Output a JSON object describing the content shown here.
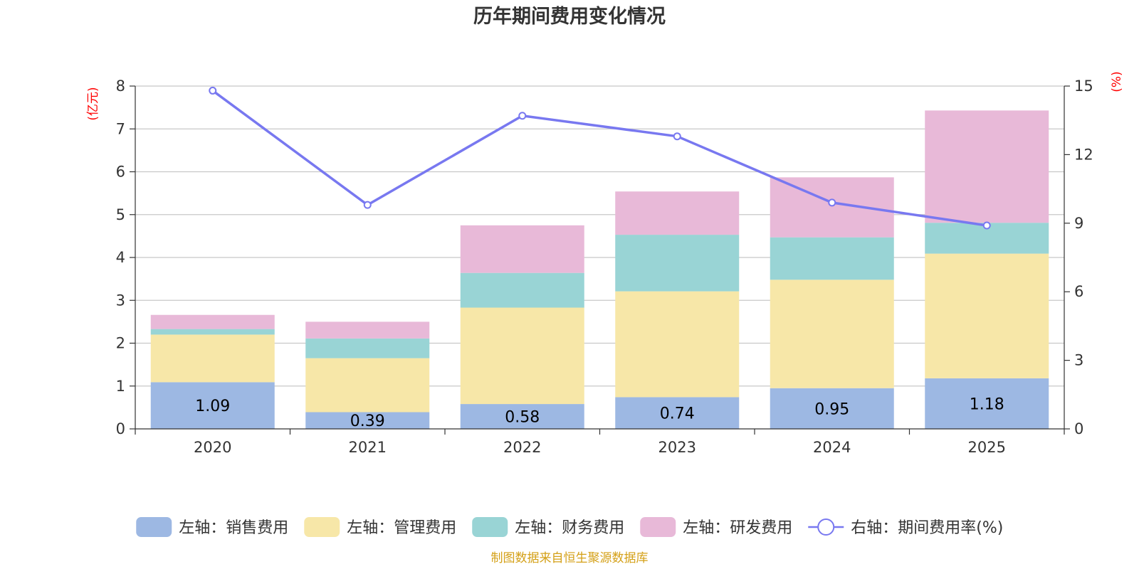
{
  "chart_data": {
    "type": "bar",
    "stacked": true,
    "title": "历年期间费用变化情况",
    "categories": [
      "2020",
      "2021",
      "2022",
      "2023",
      "2024",
      "2025"
    ],
    "left_axis": {
      "unit": "(亿元)",
      "range": [
        0,
        8
      ],
      "ticks": [
        "0",
        "1",
        "2",
        "3",
        "4",
        "5",
        "6",
        "7",
        "8"
      ]
    },
    "right_axis": {
      "unit": "(%)",
      "range": [
        0,
        15
      ],
      "ticks": [
        "0",
        "3",
        "6",
        "9",
        "12",
        "15"
      ]
    },
    "series": [
      {
        "name": "左轴：销售费用",
        "axis": "left",
        "color": "#9db8e3",
        "values": [
          1.09,
          0.39,
          0.58,
          0.74,
          0.95,
          1.18
        ],
        "labels": [
          "1.09",
          "0.39",
          "0.58",
          "0.74",
          "0.95",
          "1.18"
        ]
      },
      {
        "name": "左轴：管理费用",
        "axis": "left",
        "color": "#f7e7a8",
        "values": [
          1.11,
          1.26,
          2.25,
          2.47,
          2.53,
          2.91
        ]
      },
      {
        "name": "左轴：财务费用",
        "axis": "left",
        "color": "#99d4d5",
        "values": [
          0.13,
          0.46,
          0.81,
          1.32,
          0.99,
          0.72
        ]
      },
      {
        "name": "左轴：研发费用",
        "axis": "left",
        "color": "#e8b9d8",
        "values": [
          0.33,
          0.39,
          1.11,
          1.01,
          1.4,
          2.62
        ]
      },
      {
        "name": "右轴：期间费用率(%)",
        "axis": "right",
        "type": "line",
        "color": "#7878f0",
        "values": [
          14.8,
          9.8,
          13.7,
          12.8,
          9.9,
          8.9
        ]
      }
    ],
    "legend_position": "bottom"
  },
  "source_note": "制图数据来自恒生聚源数据库"
}
